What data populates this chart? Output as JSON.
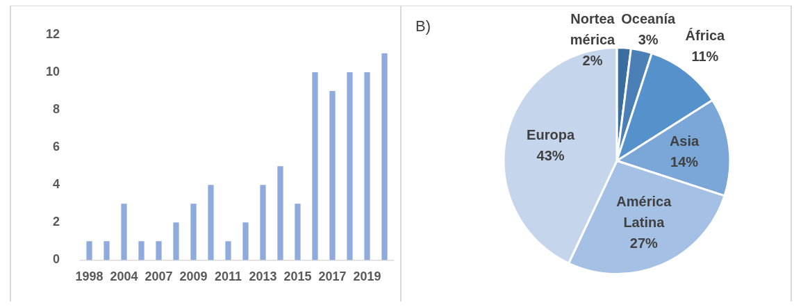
{
  "chart_data": [
    {
      "type": "bar",
      "categories": [
        "1998",
        null,
        "2004",
        null,
        "2007",
        null,
        "2009",
        null,
        "2011",
        null,
        "2013",
        null,
        "2015",
        null,
        "2017",
        null,
        "2019",
        null
      ],
      "values": [
        1,
        1,
        3,
        1,
        1,
        2,
        3,
        4,
        1,
        2,
        4,
        5,
        3,
        10,
        9,
        10,
        10,
        11
      ],
      "color": "#8faadc",
      "ylim": [
        0,
        12
      ],
      "yticks": [
        0,
        2,
        4,
        6,
        8,
        10,
        12
      ],
      "grid": false
    },
    {
      "type": "pie",
      "categories": [
        "Nortea\nmérica",
        "Oceanía",
        "África",
        "Asia",
        "América\nLatina",
        "Europa"
      ],
      "values": [
        2,
        3,
        11,
        14,
        27,
        43
      ],
      "colors": [
        "#3b6e9e",
        "#4a80b5",
        "#5592cb",
        "#7aa6d8",
        "#a4c0e4",
        "#c5d5eb"
      ],
      "value_labels": [
        "2%",
        "3%",
        "11%",
        "14%",
        "27%",
        "43%"
      ],
      "annotations": [
        "B)"
      ]
    }
  ]
}
